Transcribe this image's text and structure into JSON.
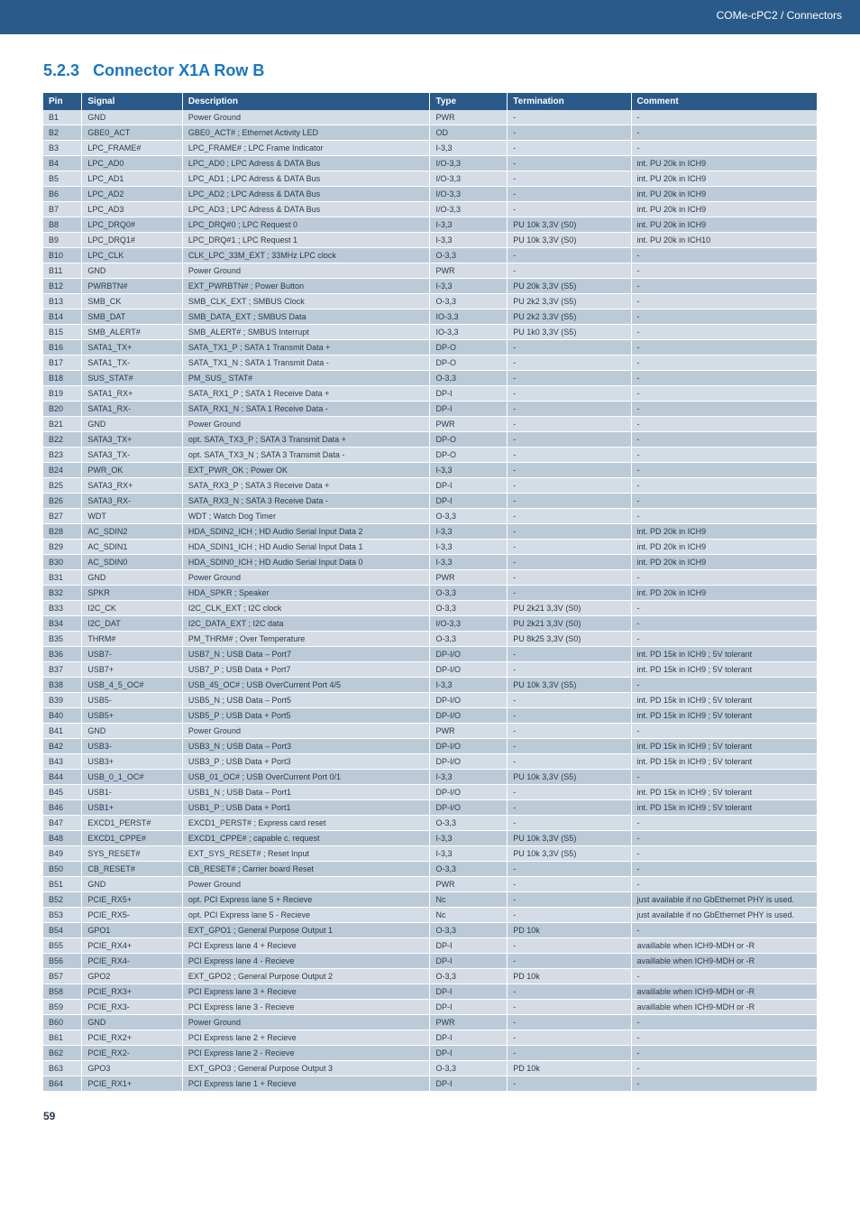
{
  "header": {
    "title": "COMe-cPC2 / Connectors"
  },
  "section": {
    "number": "5.2.3",
    "title": "Connector X1A Row B"
  },
  "page_number": "59",
  "colors": {
    "headerbar": "#2a5a8a",
    "row_even": "#d4dde6",
    "row_odd": "#bccad8",
    "title": "#1976c4"
  },
  "table": {
    "columns": [
      "Pin",
      "Signal",
      "Description",
      "Type",
      "Termination",
      "Comment"
    ],
    "rows": [
      [
        "B1",
        "GND",
        "Power Ground",
        "PWR",
        "-",
        "-"
      ],
      [
        "B2",
        "GBE0_ACT",
        "GBE0_ACT# ; Ethernet Activity LED",
        "OD",
        "-",
        "-"
      ],
      [
        "B3",
        "LPC_FRAME#",
        "LPC_FRAME# ; LPC Frame Indicator",
        "I-3,3",
        "-",
        "-"
      ],
      [
        "B4",
        "LPC_AD0",
        "LPC_AD0 ; LPC Adress & DATA Bus",
        "I/O-3,3",
        "-",
        "int. PU 20k in ICH9"
      ],
      [
        "B5",
        "LPC_AD1",
        "LPC_AD1 ; LPC Adress & DATA Bus",
        "I/O-3,3",
        "-",
        "int. PU 20k in ICH9"
      ],
      [
        "B6",
        "LPC_AD2",
        "LPC_AD2 ; LPC Adress & DATA Bus",
        "I/O-3,3",
        "-",
        "int. PU 20k in ICH9"
      ],
      [
        "B7",
        "LPC_AD3",
        "LPC_AD3 ; LPC Adress & DATA Bus",
        "I/O-3,3",
        "-",
        "int. PU 20k in ICH9"
      ],
      [
        "B8",
        "LPC_DRQ0#",
        "LPC_DRQ#0 ; LPC Request 0",
        "I-3,3",
        "PU 10k 3,3V (S0)",
        "int. PU 20k in ICH9"
      ],
      [
        "B9",
        "LPC_DRQ1#",
        "LPC_DRQ#1 ; LPC Request 1",
        "I-3,3",
        "PU 10k 3,3V (S0)",
        "int. PU 20k in ICH10"
      ],
      [
        "B10",
        "LPC_CLK",
        "CLK_LPC_33M_EXT ; 33MHz LPC clock",
        "O-3,3",
        "-",
        "-"
      ],
      [
        "B11",
        "GND",
        "Power Ground",
        "PWR",
        "-",
        "-"
      ],
      [
        "B12",
        "PWRBTN#",
        "EXT_PWRBTN# ; Power Button",
        "I-3,3",
        "PU 20k 3,3V (S5)",
        "-"
      ],
      [
        "B13",
        "SMB_CK",
        "SMB_CLK_EXT ; SMBUS Clock",
        "O-3,3",
        "PU 2k2 3,3V (S5)",
        "-"
      ],
      [
        "B14",
        "SMB_DAT",
        "SMB_DATA_EXT ; SMBUS Data",
        "IO-3,3",
        "PU 2k2 3,3V (S5)",
        "-"
      ],
      [
        "B15",
        "SMB_ALERT#",
        "SMB_ALERT# ; SMBUS Interrupt",
        "IO-3,3",
        "PU 1k0 3,3V (S5)",
        "-"
      ],
      [
        "B16",
        "SATA1_TX+",
        "SATA_TX1_P ; SATA 1 Transmit Data +",
        "DP-O",
        "-",
        "-"
      ],
      [
        "B17",
        "SATA1_TX-",
        "SATA_TX1_N ; SATA 1 Transmit Data -",
        "DP-O",
        "-",
        "-"
      ],
      [
        "B18",
        "SUS_STAT#",
        "PM_SUS_ STAT#",
        "O-3,3",
        "-",
        "-"
      ],
      [
        "B19",
        "SATA1_RX+",
        "SATA_RX1_P ; SATA 1 Receive Data +",
        "DP-I",
        "-",
        "-"
      ],
      [
        "B20",
        "SATA1_RX-",
        "SATA_RX1_N ; SATA 1 Receive Data -",
        "DP-I",
        "-",
        "-"
      ],
      [
        "B21",
        "GND",
        "Power Ground",
        "PWR",
        "-",
        "-"
      ],
      [
        "B22",
        "SATA3_TX+",
        "opt. SATA_TX3_P ; SATA 3 Transmit Data +",
        "DP-O",
        "-",
        "-"
      ],
      [
        "B23",
        "SATA3_TX-",
        "opt. SATA_TX3_N ; SATA 3 Transmit Data -",
        "DP-O",
        "-",
        "-"
      ],
      [
        "B24",
        "PWR_OK",
        "EXT_PWR_OK ; Power OK",
        "I-3,3",
        "-",
        "-"
      ],
      [
        "B25",
        "SATA3_RX+",
        "SATA_RX3_P ; SATA 3 Receive Data +",
        "DP-I",
        "-",
        "-"
      ],
      [
        "B26",
        "SATA3_RX-",
        "SATA_RX3_N ; SATA 3 Receive Data -",
        "DP-I",
        "-",
        "-"
      ],
      [
        "B27",
        "WDT",
        "WDT ; Watch Dog Timer",
        "O-3,3",
        "-",
        "-"
      ],
      [
        "B28",
        "AC_SDIN2",
        "HDA_SDIN2_ICH ; HD Audio Serial Input Data 2",
        "I-3,3",
        "-",
        "int. PD 20k in ICH9"
      ],
      [
        "B29",
        "AC_SDIN1",
        "HDA_SDIN1_ICH ; HD Audio Serial Input Data 1",
        "I-3,3",
        "-",
        "int. PD 20k in ICH9"
      ],
      [
        "B30",
        "AC_SDIN0",
        "HDA_SDIN0_ICH ; HD Audio Serial Input Data 0",
        "I-3,3",
        "-",
        "int. PD 20k in ICH9"
      ],
      [
        "B31",
        "GND",
        "Power Ground",
        "PWR",
        "-",
        "-"
      ],
      [
        "B32",
        "SPKR",
        "HDA_SPKR ; Speaker",
        "O-3,3",
        "-",
        "int. PD 20k in ICH9"
      ],
      [
        "B33",
        "I2C_CK",
        "I2C_CLK_EXT ; I2C clock",
        "O-3,3",
        "PU 2k21 3,3V (S0)",
        "-"
      ],
      [
        "B34",
        "I2C_DAT",
        "I2C_DATA_EXT ; I2C data",
        "I/O-3,3",
        "PU 2k21 3,3V (S0)",
        "-"
      ],
      [
        "B35",
        "THRM#",
        "PM_THRM# ; Over Temperature",
        "O-3,3",
        "PU 8k25 3,3V (S0)",
        "-"
      ],
      [
        "B36",
        "USB7-",
        "USB7_N ; USB Data – Port7",
        "DP-I/O",
        "-",
        "int. PD 15k in ICH9 ; 5V tolerant"
      ],
      [
        "B37",
        "USB7+",
        "USB7_P ; USB Data + Port7",
        "DP-I/O",
        "-",
        "int. PD 15k in ICH9 ; 5V tolerant"
      ],
      [
        "B38",
        "USB_4_5_OC#",
        "USB_45_OC# ; USB OverCurrent Port 4/5",
        "I-3,3",
        "PU 10k 3,3V (S5)",
        "-"
      ],
      [
        "B39",
        "USB5-",
        "USB5_N ; USB Data – Port5",
        "DP-I/O",
        "-",
        "int. PD 15k in ICH9 ; 5V tolerant"
      ],
      [
        "B40",
        "USB5+",
        "USB5_P ; USB Data + Port5",
        "DP-I/O",
        "-",
        "int. PD 15k in ICH9 ; 5V tolerant"
      ],
      [
        "B41",
        "GND",
        "Power Ground",
        "PWR",
        "-",
        "-"
      ],
      [
        "B42",
        "USB3-",
        "USB3_N ; USB Data – Port3",
        "DP-I/O",
        "-",
        "int. PD 15k in ICH9 ; 5V tolerant"
      ],
      [
        "B43",
        "USB3+",
        "USB3_P ; USB Data + Port3",
        "DP-I/O",
        "-",
        "int. PD 15k in ICH9 ; 5V tolerant"
      ],
      [
        "B44",
        "USB_0_1_OC#",
        "USB_01_OC# ; USB OverCurrent Port 0/1",
        "I-3,3",
        "PU 10k 3,3V (S5)",
        "-"
      ],
      [
        "B45",
        "USB1-",
        "USB1_N ; USB Data – Port1",
        "DP-I/O",
        "-",
        "int. PD 15k in ICH9 ; 5V tolerant"
      ],
      [
        "B46",
        "USB1+",
        "USB1_P ; USB Data + Port1",
        "DP-I/O",
        "-",
        "int. PD 15k in ICH9 ; 5V tolerant"
      ],
      [
        "B47",
        "EXCD1_PERST#",
        "EXCD1_PERST# ; Express card reset",
        "O-3,3",
        "-",
        "-"
      ],
      [
        "B48",
        "EXCD1_CPPE#",
        "EXCD1_CPPE# ; capable c. request",
        "I-3,3",
        "PU 10k 3,3V (S5)",
        "-"
      ],
      [
        "B49",
        "SYS_RESET#",
        "EXT_SYS_RESET# ; Reset Input",
        "I-3,3",
        "PU 10k 3,3V (S5)",
        "-"
      ],
      [
        "B50",
        "CB_RESET#",
        "CB_RESET# ; Carrier board Reset",
        "O-3,3",
        "-",
        "-"
      ],
      [
        "B51",
        "GND",
        "Power Ground",
        "PWR",
        "-",
        "-"
      ],
      [
        "B52",
        "PCIE_RX5+",
        "opt. PCI Express lane 5 + Recieve",
        "Nc",
        "-",
        "just available if no GbEthernet PHY is used."
      ],
      [
        "B53",
        "PCIE_RX5-",
        "opt. PCI Express lane 5 - Recieve",
        "Nc",
        "-",
        "just available if no GbEthernet PHY is used."
      ],
      [
        "B54",
        "GPO1",
        "EXT_GPO1 ; General Purpose Output 1",
        "O-3,3",
        "PD 10k",
        "-"
      ],
      [
        "B55",
        "PCIE_RX4+",
        "PCI Express lane 4 + Recieve",
        "DP-I",
        "-",
        "availlable when ICH9-MDH or -R"
      ],
      [
        "B56",
        "PCIE_RX4-",
        "PCI Express lane 4 - Recieve",
        "DP-I",
        "-",
        "availlable when ICH9-MDH or -R"
      ],
      [
        "B57",
        "GPO2",
        "EXT_GPO2 ; General Purpose Output 2",
        "O-3,3",
        "PD 10k",
        "-"
      ],
      [
        "B58",
        "PCIE_RX3+",
        "PCI Express lane 3 + Recieve",
        "DP-I",
        "-",
        "availlable when ICH9-MDH or -R"
      ],
      [
        "B59",
        "PCIE_RX3-",
        "PCI Express lane 3 - Recieve",
        "DP-I",
        "-",
        "availlable when ICH9-MDH or -R"
      ],
      [
        "B60",
        "GND",
        "Power Ground",
        "PWR",
        "-",
        "-"
      ],
      [
        "B61",
        "PCIE_RX2+",
        "PCI Express lane 2 + Recieve",
        "DP-I",
        "-",
        "-"
      ],
      [
        "B62",
        "PCIE_RX2-",
        "PCI Express lane 2 - Recieve",
        "DP-I",
        "-",
        "-"
      ],
      [
        "B63",
        "GPO3",
        "EXT_GPO3 ; General Purpose Output 3",
        "O-3,3",
        "PD 10k",
        "-"
      ],
      [
        "B64",
        "PCIE_RX1+",
        "PCI Express lane 1 + Recieve",
        "DP-I",
        "-",
        "-"
      ]
    ]
  }
}
